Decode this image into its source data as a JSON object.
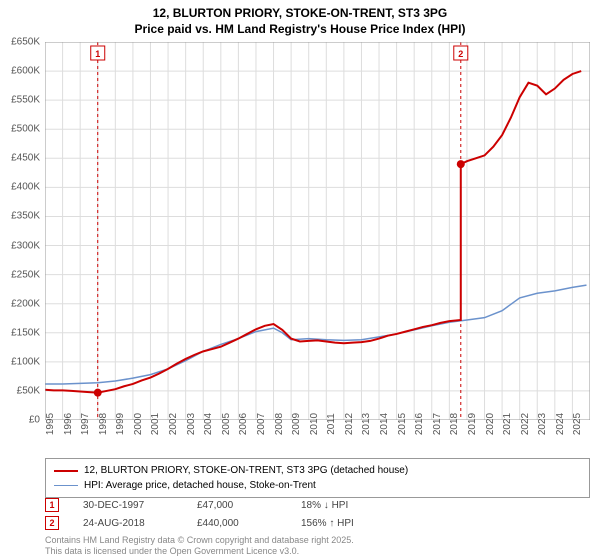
{
  "titles": {
    "line1": "12, BLURTON PRIORY, STOKE-ON-TRENT, ST3 3PG",
    "line2": "Price paid vs. HM Land Registry's House Price Index (HPI)"
  },
  "chart": {
    "type": "line",
    "background_color": "#ffffff",
    "plot_background": "#ffffff",
    "grid_color": "#dddddd",
    "border_color": "#999999",
    "xlim": [
      1995,
      2026
    ],
    "ylim": [
      0,
      650000
    ],
    "ytick_step": 50000,
    "y_ticks": [
      0,
      50000,
      100000,
      150000,
      200000,
      250000,
      300000,
      350000,
      400000,
      450000,
      500000,
      550000,
      600000,
      650000
    ],
    "y_tick_labels": [
      "£0",
      "£50K",
      "£100K",
      "£150K",
      "£200K",
      "£250K",
      "£300K",
      "£350K",
      "£400K",
      "£450K",
      "£500K",
      "£550K",
      "£600K",
      "£650K"
    ],
    "x_ticks": [
      1995,
      1996,
      1997,
      1998,
      1999,
      2000,
      2001,
      2002,
      2003,
      2004,
      2005,
      2006,
      2007,
      2008,
      2009,
      2010,
      2011,
      2012,
      2013,
      2014,
      2015,
      2016,
      2017,
      2018,
      2019,
      2020,
      2021,
      2022,
      2023,
      2024,
      2025
    ],
    "x_tick_labels": [
      "1995",
      "1996",
      "1997",
      "1998",
      "1999",
      "2000",
      "2001",
      "2002",
      "2003",
      "2004",
      "2005",
      "2006",
      "2007",
      "2008",
      "2009",
      "2010",
      "2011",
      "2012",
      "2013",
      "2014",
      "2015",
      "2016",
      "2017",
      "2018",
      "2019",
      "2020",
      "2021",
      "2022",
      "2023",
      "2024",
      "2025"
    ],
    "series": [
      {
        "name": "property",
        "label": "12, BLURTON PRIORY, STOKE-ON-TRENT, ST3 3PG (detached house)",
        "color": "#cc0000",
        "line_width": 2,
        "data": [
          [
            1995.0,
            52000
          ],
          [
            1995.5,
            51000
          ],
          [
            1996.0,
            51000
          ],
          [
            1996.5,
            50000
          ],
          [
            1997.0,
            49000
          ],
          [
            1997.5,
            48000
          ],
          [
            1998.0,
            47000
          ],
          [
            1998.5,
            50000
          ],
          [
            1999.0,
            53000
          ],
          [
            1999.5,
            58000
          ],
          [
            2000.0,
            62000
          ],
          [
            2000.5,
            68000
          ],
          [
            2001.0,
            73000
          ],
          [
            2001.5,
            80000
          ],
          [
            2002.0,
            88000
          ],
          [
            2002.5,
            97000
          ],
          [
            2003.0,
            105000
          ],
          [
            2003.5,
            112000
          ],
          [
            2004.0,
            118000
          ],
          [
            2004.5,
            122000
          ],
          [
            2005.0,
            126000
          ],
          [
            2005.5,
            133000
          ],
          [
            2006.0,
            140000
          ],
          [
            2006.5,
            148000
          ],
          [
            2007.0,
            156000
          ],
          [
            2007.5,
            162000
          ],
          [
            2008.0,
            165000
          ],
          [
            2008.5,
            155000
          ],
          [
            2009.0,
            140000
          ],
          [
            2009.5,
            135000
          ],
          [
            2010.0,
            136000
          ],
          [
            2010.5,
            137000
          ],
          [
            2011.0,
            135000
          ],
          [
            2011.5,
            133000
          ],
          [
            2012.0,
            132000
          ],
          [
            2012.5,
            133000
          ],
          [
            2013.0,
            134000
          ],
          [
            2013.5,
            136000
          ],
          [
            2014.0,
            140000
          ],
          [
            2014.5,
            145000
          ],
          [
            2015.0,
            148000
          ],
          [
            2015.5,
            152000
          ],
          [
            2016.0,
            156000
          ],
          [
            2016.5,
            160000
          ],
          [
            2017.0,
            163000
          ],
          [
            2017.5,
            167000
          ],
          [
            2018.0,
            170000
          ],
          [
            2018.65,
            172000
          ],
          [
            2018.65,
            440000
          ],
          [
            2019.0,
            445000
          ],
          [
            2019.5,
            450000
          ],
          [
            2020.0,
            455000
          ],
          [
            2020.5,
            470000
          ],
          [
            2021.0,
            490000
          ],
          [
            2021.5,
            520000
          ],
          [
            2022.0,
            555000
          ],
          [
            2022.5,
            580000
          ],
          [
            2023.0,
            575000
          ],
          [
            2023.5,
            560000
          ],
          [
            2024.0,
            570000
          ],
          [
            2024.5,
            585000
          ],
          [
            2025.0,
            595000
          ],
          [
            2025.5,
            600000
          ]
        ]
      },
      {
        "name": "hpi",
        "label": "HPI: Average price, detached house, Stoke-on-Trent",
        "color": "#6b92cc",
        "line_width": 1.5,
        "data": [
          [
            1995.0,
            62000
          ],
          [
            1996.0,
            62000
          ],
          [
            1997.0,
            63000
          ],
          [
            1998.0,
            64000
          ],
          [
            1999.0,
            67000
          ],
          [
            2000.0,
            72000
          ],
          [
            2001.0,
            78000
          ],
          [
            2002.0,
            88000
          ],
          [
            2003.0,
            102000
          ],
          [
            2004.0,
            118000
          ],
          [
            2005.0,
            130000
          ],
          [
            2006.0,
            140000
          ],
          [
            2007.0,
            152000
          ],
          [
            2008.0,
            158000
          ],
          [
            2008.5,
            150000
          ],
          [
            2009.0,
            138000
          ],
          [
            2010.0,
            140000
          ],
          [
            2011.0,
            138000
          ],
          [
            2012.0,
            137000
          ],
          [
            2013.0,
            138000
          ],
          [
            2014.0,
            143000
          ],
          [
            2015.0,
            148000
          ],
          [
            2016.0,
            155000
          ],
          [
            2017.0,
            162000
          ],
          [
            2018.0,
            168000
          ],
          [
            2019.0,
            172000
          ],
          [
            2020.0,
            176000
          ],
          [
            2021.0,
            188000
          ],
          [
            2022.0,
            210000
          ],
          [
            2023.0,
            218000
          ],
          [
            2024.0,
            222000
          ],
          [
            2025.0,
            228000
          ],
          [
            2025.8,
            232000
          ]
        ]
      }
    ],
    "sale_markers": [
      {
        "badge": "1",
        "x": 1998.0,
        "y": 47000,
        "line_color": "#cc0000",
        "line_dash": "3,3"
      },
      {
        "badge": "2",
        "x": 2018.65,
        "y": 440000,
        "line_color": "#cc0000",
        "line_dash": "3,3"
      }
    ],
    "marker_style": {
      "fill": "#cc0000",
      "radius": 4
    },
    "axis_font_size": 10,
    "label_color": "#555555"
  },
  "legend": {
    "items": [
      {
        "color": "#cc0000",
        "width": 2,
        "text": "12, BLURTON PRIORY, STOKE-ON-TRENT, ST3 3PG (detached house)"
      },
      {
        "color": "#6b92cc",
        "width": 1.5,
        "text": "HPI: Average price, detached house, Stoke-on-Trent"
      }
    ]
  },
  "sales_table": {
    "rows": [
      {
        "badge": "1",
        "date": "30-DEC-1997",
        "price": "£47,000",
        "pct": "18% ↓ HPI"
      },
      {
        "badge": "2",
        "date": "24-AUG-2018",
        "price": "£440,000",
        "pct": "156% ↑ HPI"
      }
    ]
  },
  "footer": {
    "line1": "Contains HM Land Registry data © Crown copyright and database right 2025.",
    "line2": "This data is licensed under the Open Government Licence v3.0."
  }
}
